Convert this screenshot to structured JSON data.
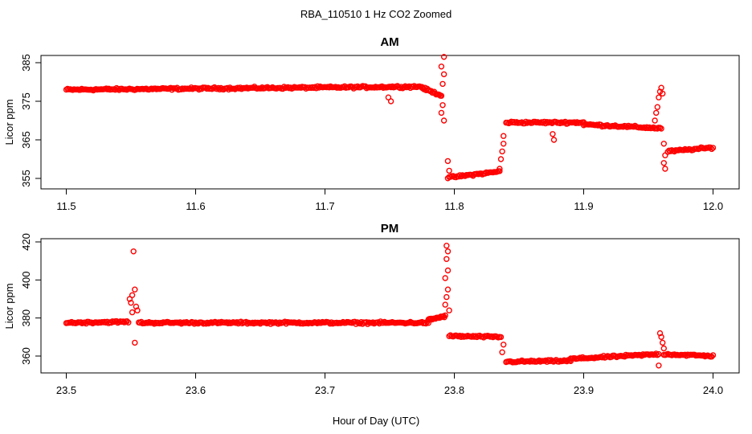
{
  "figure": {
    "title": "RBA_110510  1 Hz CO2 Zoomed",
    "xlabel": "Hour of Day (UTC)"
  },
  "chart_data": [
    {
      "type": "scatter",
      "title": "AM",
      "xlabel": "Hour of Day (UTC)",
      "ylabel": "Licor ppm",
      "xlim": [
        11.5,
        12.0
      ],
      "ylim": [
        353.5,
        387.5
      ],
      "xticks": [
        11.5,
        11.6,
        11.7,
        11.8,
        11.9,
        12.0
      ],
      "xtick_labels": [
        "11.5",
        "11.6",
        "11.7",
        "11.8",
        "11.9",
        "12.0"
      ],
      "yticks": [
        355,
        365,
        375,
        385
      ],
      "ytick_labels": [
        "355",
        "365",
        "375",
        "385"
      ],
      "grid": false,
      "marker": "open-circle",
      "series": [
        {
          "color": "#ff0000",
          "segments": [
            {
              "x": [
                11.5,
                11.775
              ],
              "y": [
                378,
                378.8
              ]
            },
            {
              "x": [
                11.775,
                11.79
              ],
              "y": [
                378.5,
                376.5
              ]
            },
            {
              "x": [
                11.795,
                11.835
              ],
              "y": [
                355.2,
                356.8
              ]
            },
            {
              "x": [
                11.84,
                11.9
              ],
              "y": [
                369.5,
                369.5
              ]
            },
            {
              "x": [
                11.9,
                11.96
              ],
              "y": [
                369,
                368
              ]
            },
            {
              "x": [
                11.965,
                12.0
              ],
              "y": [
                362,
                363
              ]
            }
          ],
          "points": [
            {
              "x": 11.751,
              "y": 375
            },
            {
              "x": 11.749,
              "y": 376
            },
            {
              "x": 11.79,
              "y": 384
            },
            {
              "x": 11.792,
              "y": 386.5
            },
            {
              "x": 11.792,
              "y": 382
            },
            {
              "x": 11.791,
              "y": 379.5
            },
            {
              "x": 11.79,
              "y": 372
            },
            {
              "x": 11.792,
              "y": 370
            },
            {
              "x": 11.791,
              "y": 374
            },
            {
              "x": 11.795,
              "y": 359.5
            },
            {
              "x": 11.796,
              "y": 357
            },
            {
              "x": 11.835,
              "y": 357.5
            },
            {
              "x": 11.836,
              "y": 360
            },
            {
              "x": 11.837,
              "y": 362
            },
            {
              "x": 11.838,
              "y": 364
            },
            {
              "x": 11.838,
              "y": 366
            },
            {
              "x": 11.876,
              "y": 366.5
            },
            {
              "x": 11.877,
              "y": 365
            },
            {
              "x": 11.955,
              "y": 370
            },
            {
              "x": 11.956,
              "y": 372
            },
            {
              "x": 11.957,
              "y": 373.5
            },
            {
              "x": 11.958,
              "y": 376
            },
            {
              "x": 11.959,
              "y": 377.5
            },
            {
              "x": 11.96,
              "y": 378.5
            },
            {
              "x": 11.961,
              "y": 377
            },
            {
              "x": 11.962,
              "y": 364
            },
            {
              "x": 11.963,
              "y": 361
            },
            {
              "x": 11.962,
              "y": 359
            },
            {
              "x": 11.963,
              "y": 357.5
            }
          ]
        }
      ]
    },
    {
      "type": "scatter",
      "title": "PM",
      "xlabel": "Hour of Day (UTC)",
      "ylabel": "Licor ppm",
      "xlim": [
        23.5,
        24.0
      ],
      "ylim": [
        353,
        420
      ],
      "xticks": [
        23.5,
        23.6,
        23.7,
        23.8,
        23.9,
        24.0
      ],
      "xtick_labels": [
        "23.5",
        "23.6",
        "23.7",
        "23.8",
        "23.9",
        "24.0"
      ],
      "yticks": [
        360,
        380,
        400,
        420
      ],
      "ytick_labels": [
        "360",
        "380",
        "400",
        "420"
      ],
      "grid": false,
      "marker": "open-circle",
      "series": [
        {
          "color": "#ff0000",
          "segments": [
            {
              "x": [
                23.5,
                23.548
              ],
              "y": [
                377.5,
                378
              ]
            },
            {
              "x": [
                23.556,
                23.78
              ],
              "y": [
                377.5,
                377.5
              ]
            },
            {
              "x": [
                23.78,
                23.793
              ],
              "y": [
                379,
                381
              ]
            },
            {
              "x": [
                23.796,
                23.836
              ],
              "y": [
                370.5,
                370
              ]
            },
            {
              "x": [
                23.84,
                23.89
              ],
              "y": [
                357,
                357.5
              ]
            },
            {
              "x": [
                23.89,
                23.958
              ],
              "y": [
                358.5,
                361
              ]
            },
            {
              "x": [
                23.962,
                24.0
              ],
              "y": [
                361,
                360
              ]
            }
          ],
          "points": [
            {
              "x": 23.552,
              "y": 415
            },
            {
              "x": 23.549,
              "y": 390
            },
            {
              "x": 23.55,
              "y": 388
            },
            {
              "x": 23.551,
              "y": 392
            },
            {
              "x": 23.553,
              "y": 395
            },
            {
              "x": 23.554,
              "y": 386
            },
            {
              "x": 23.555,
              "y": 384
            },
            {
              "x": 23.553,
              "y": 367
            },
            {
              "x": 23.551,
              "y": 383
            },
            {
              "x": 23.794,
              "y": 418
            },
            {
              "x": 23.795,
              "y": 415
            },
            {
              "x": 23.794,
              "y": 411
            },
            {
              "x": 23.795,
              "y": 405
            },
            {
              "x": 23.793,
              "y": 401
            },
            {
              "x": 23.795,
              "y": 395
            },
            {
              "x": 23.794,
              "y": 391
            },
            {
              "x": 23.793,
              "y": 387
            },
            {
              "x": 23.796,
              "y": 384
            },
            {
              "x": 23.837,
              "y": 362
            },
            {
              "x": 23.838,
              "y": 366
            },
            {
              "x": 23.958,
              "y": 355
            },
            {
              "x": 23.959,
              "y": 372
            },
            {
              "x": 23.96,
              "y": 370
            },
            {
              "x": 23.961,
              "y": 367
            },
            {
              "x": 23.962,
              "y": 364
            }
          ]
        }
      ]
    }
  ]
}
